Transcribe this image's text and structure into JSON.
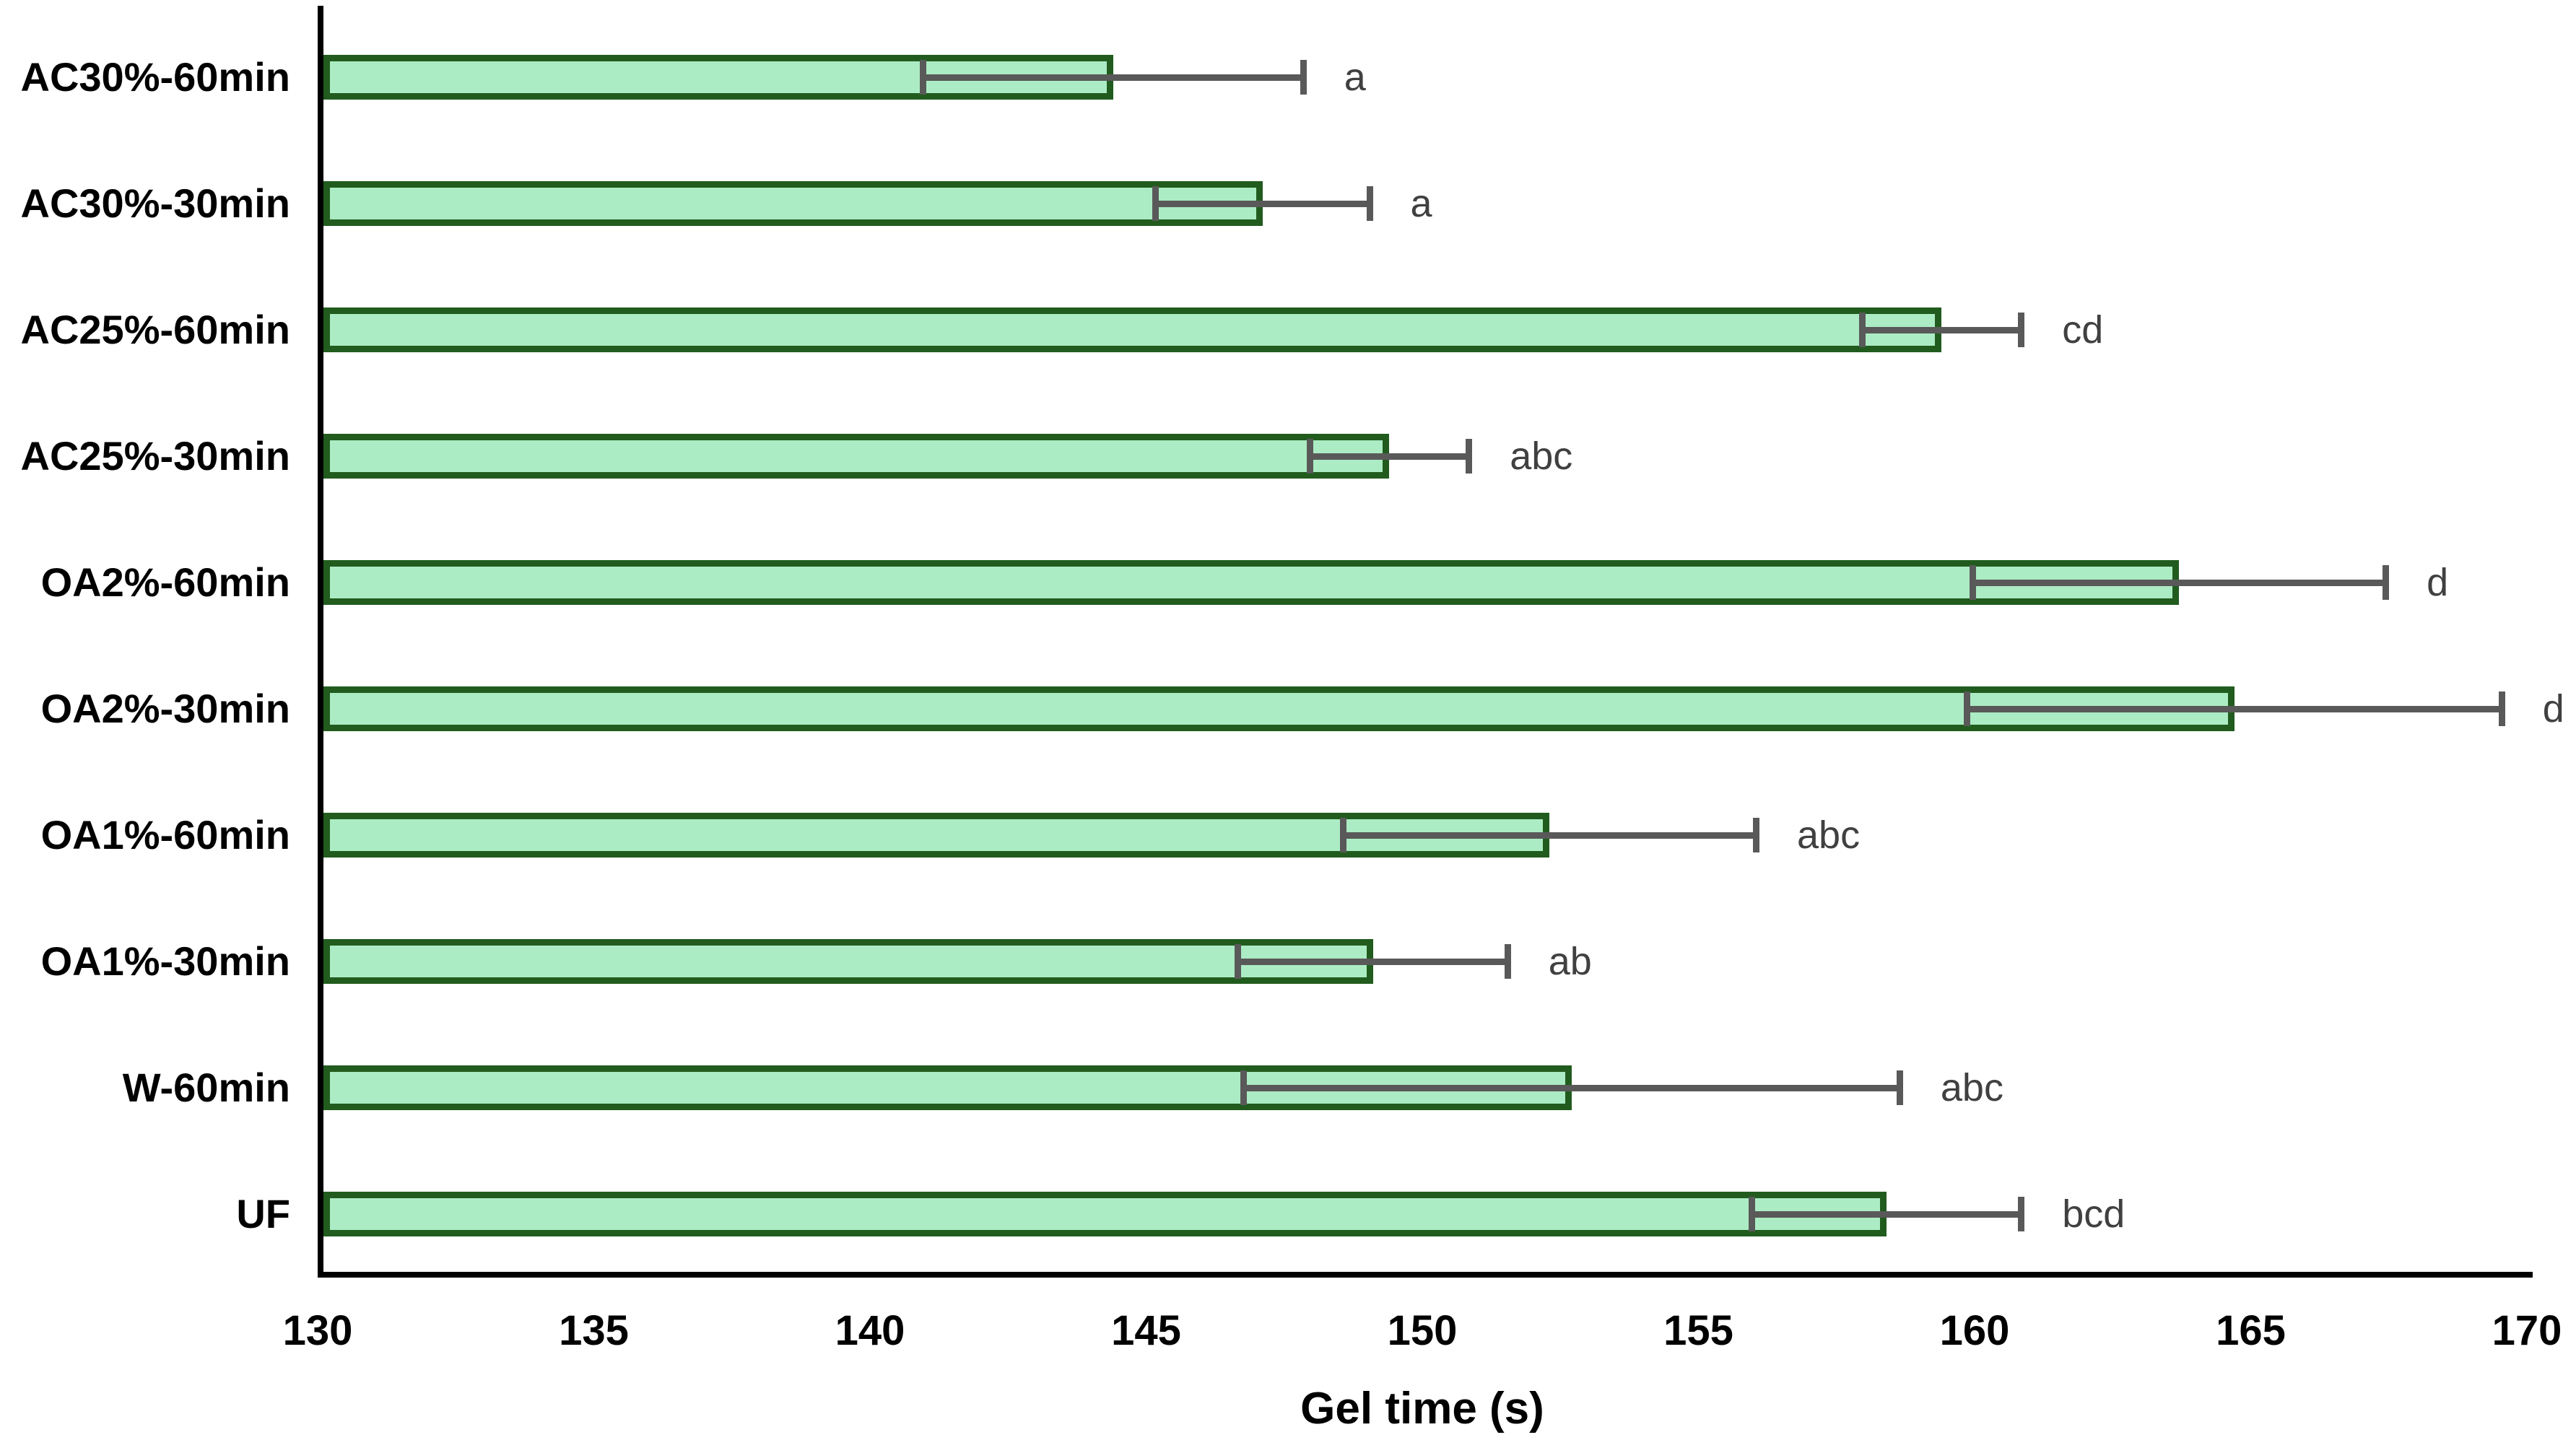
{
  "chart_data": {
    "type": "bar",
    "orientation": "horizontal",
    "title": "",
    "xlabel": "Gel time (s)",
    "ylabel": "",
    "xlim": [
      130,
      170
    ],
    "xticks": [
      130,
      135,
      140,
      145,
      150,
      155,
      160,
      165,
      170
    ],
    "grid": false,
    "legend": "none",
    "categories_top_to_bottom": [
      "AC30%-60min",
      "AC30%-30min",
      "AC25%-60min",
      "AC25%-30min",
      "OA2%-60min",
      "OA2%-30min",
      "OA1%-60min",
      "OA1%-30min",
      "W-60min",
      "UF"
    ],
    "values": [
      144.3,
      147.0,
      159.3,
      149.3,
      163.6,
      164.6,
      152.2,
      149.0,
      152.6,
      158.3
    ],
    "errors": [
      3.5,
      2.0,
      1.5,
      1.5,
      3.8,
      4.9,
      3.8,
      2.5,
      6.0,
      2.5
    ],
    "sig_letters": [
      "a",
      "a",
      "cd",
      "abc",
      "d",
      "d",
      "abc",
      "ab",
      "abc",
      "bcd"
    ],
    "colors": {
      "bar_fill": "#acecc4",
      "bar_border": "#215c1e",
      "error_bar": "#595959",
      "sig_letter": "#404040",
      "axis": "#000000"
    }
  }
}
